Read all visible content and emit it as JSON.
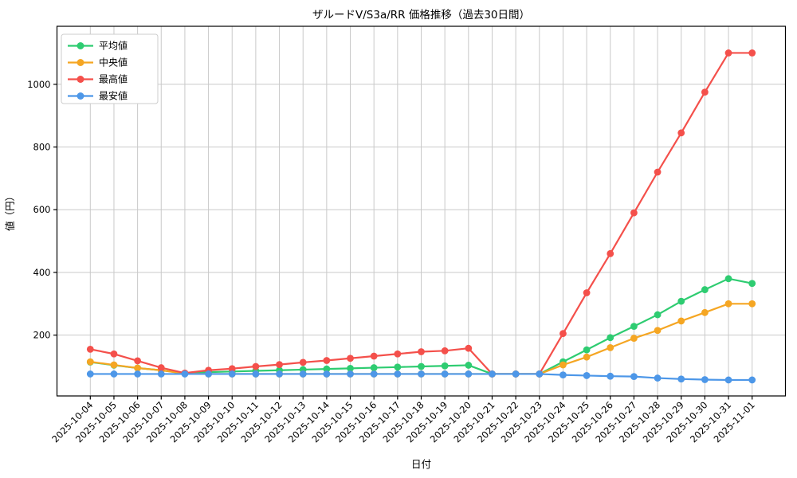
{
  "chart_data": {
    "type": "line",
    "title": "ザルードV/S3a/RR 価格推移（過去30日間）",
    "xlabel": "日付",
    "ylabel": "値（円）",
    "x": [
      "2025-10-04",
      "2025-10-05",
      "2025-10-06",
      "2025-10-07",
      "2025-10-08",
      "2025-10-09",
      "2025-10-10",
      "2025-10-11",
      "2025-10-12",
      "2025-10-13",
      "2025-10-14",
      "2025-10-15",
      "2025-10-16",
      "2025-10-17",
      "2025-10-18",
      "2025-10-19",
      "2025-10-20",
      "2025-10-21",
      "2025-10-22",
      "2025-10-23",
      "2025-10-24",
      "2025-10-25",
      "2025-10-26",
      "2025-10-27",
      "2025-10-28",
      "2025-10-29",
      "2025-10-30",
      "2025-10-31",
      "2025-11-01"
    ],
    "series": [
      {
        "name": "平均値",
        "color": "#2ecc71",
        "values": [
          114,
          104,
          95,
          88,
          78,
          82,
          84,
          86,
          88,
          90,
          92,
          94,
          96,
          98,
          100,
          102,
          104,
          76,
          76,
          76,
          115,
          153,
          192,
          228,
          265,
          308,
          345,
          380,
          365
        ]
      },
      {
        "name": "中央値",
        "color": "#f5a623",
        "values": [
          115,
          105,
          95,
          88,
          77,
          76,
          76,
          76,
          76,
          76,
          76,
          76,
          76,
          76,
          76,
          76,
          76,
          76,
          76,
          76,
          105,
          130,
          160,
          190,
          215,
          245,
          272,
          300,
          300
        ]
      },
      {
        "name": "最高値",
        "color": "#f4504b",
        "values": [
          155,
          140,
          118,
          96,
          79,
          88,
          93,
          100,
          106,
          113,
          119,
          126,
          133,
          140,
          147,
          150,
          158,
          76,
          76,
          76,
          205,
          335,
          460,
          590,
          720,
          845,
          975,
          1100,
          1100
        ]
      },
      {
        "name": "最安値",
        "color": "#4d97e8",
        "values": [
          76,
          76,
          76,
          76,
          76,
          76,
          76,
          76,
          76,
          76,
          76,
          76,
          76,
          76,
          76,
          76,
          76,
          76,
          76,
          76,
          73,
          71,
          69,
          68,
          63,
          60,
          58,
          57,
          57
        ]
      }
    ],
    "yticks": [
      200,
      400,
      600,
      800,
      1000
    ],
    "ylim": [
      6,
      1185
    ],
    "grid": true,
    "legend_position": "upper left"
  },
  "colors": {
    "grid": "#c9c9c9",
    "axis": "#000000",
    "background": "#ffffff",
    "legend_border": "#cccccc"
  }
}
